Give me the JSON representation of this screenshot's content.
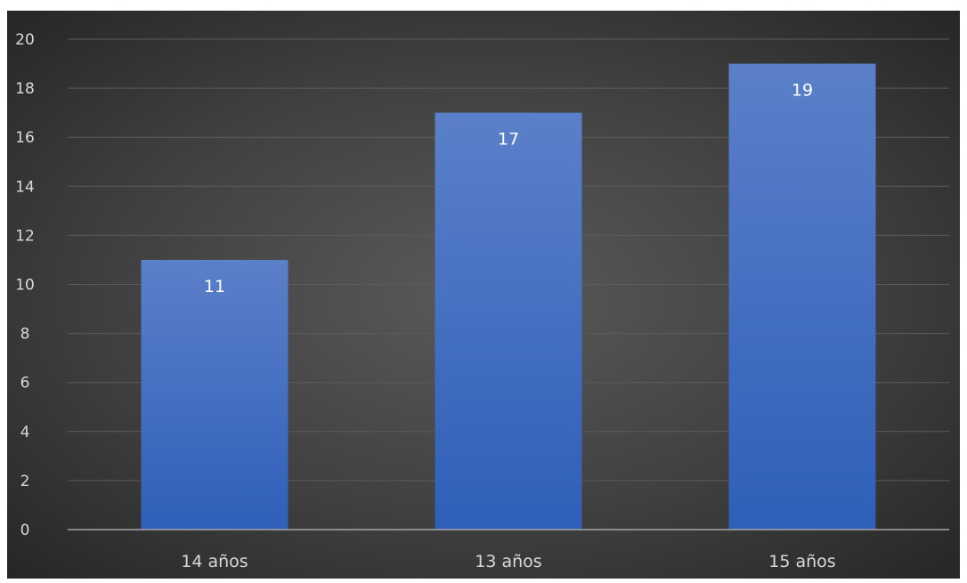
{
  "chart_data": {
    "type": "bar",
    "categories": [
      "14 años",
      "13 años",
      "15 años"
    ],
    "values": [
      11,
      17,
      19
    ],
    "title": "",
    "xlabel": "",
    "ylabel": "",
    "ylim": [
      0,
      20
    ],
    "y_ticks": [
      0,
      2,
      4,
      6,
      8,
      10,
      12,
      14,
      16,
      18,
      20
    ],
    "grid": true,
    "legend": "none",
    "data_labels": true,
    "colors": {
      "bar_top": "#5b80c9",
      "bar_bottom": "#2f5fb9",
      "background_center": "#5a5a5a",
      "background_edge": "#262626",
      "gridline": "#5c5c5c",
      "axis_line": "#a6a6a6",
      "tick_text": "#d9d9d9",
      "data_label_text": "#ffffff"
    }
  }
}
